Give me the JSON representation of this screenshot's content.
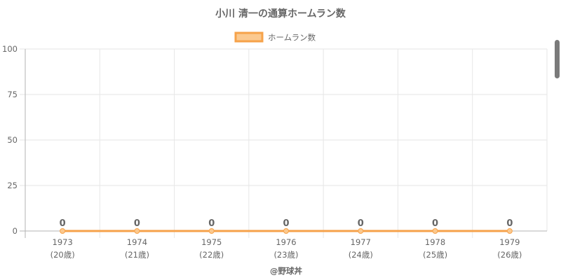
{
  "chart_data": {
    "type": "line",
    "title": "小川 清一の通算ホームラン数",
    "categories": [
      "1973",
      "1974",
      "1975",
      "1976",
      "1977",
      "1978",
      "1979"
    ],
    "category_sublabels": [
      "(20歳)",
      "(21歳)",
      "(22歳)",
      "(23歳)",
      "(24歳)",
      "(25歳)",
      "(26歳)"
    ],
    "series": [
      {
        "name": "ホームラン数",
        "values": [
          0,
          0,
          0,
          0,
          0,
          0,
          0
        ],
        "color": "#f6a24a",
        "fill": "#fbc98f"
      }
    ],
    "data_labels": [
      "0",
      "0",
      "0",
      "0",
      "0",
      "0",
      "0"
    ],
    "ylim": [
      0,
      100
    ],
    "yticks": [
      0,
      25,
      50,
      75,
      100
    ],
    "grid": true,
    "legend": "top"
  },
  "credit": "@野球丼",
  "colors": {
    "grid": "#e6e6e6",
    "axis": "#b3b3b3",
    "text": "#666666",
    "title": "#666666"
  }
}
